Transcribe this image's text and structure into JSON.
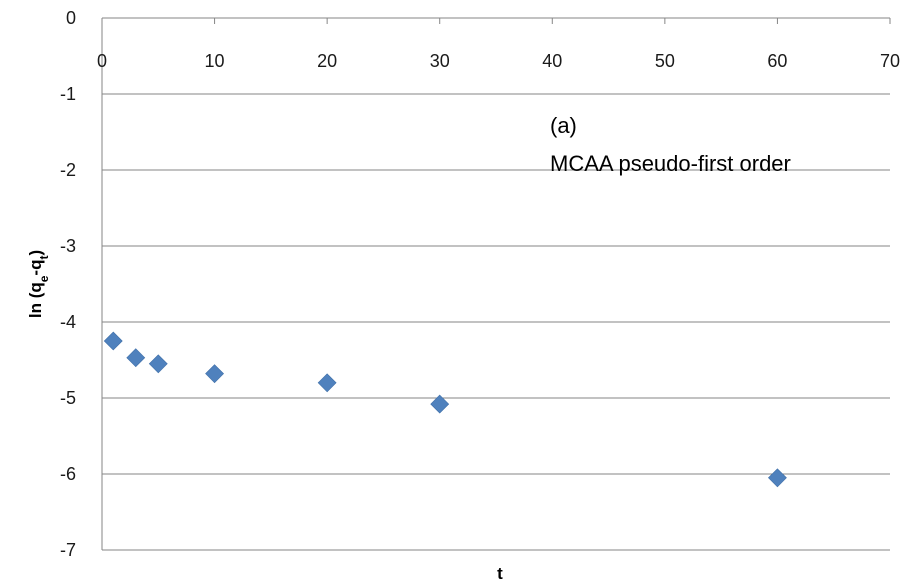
{
  "chart_data": {
    "type": "scatter",
    "title": "",
    "xlabel": "t",
    "ylabel": {
      "prefix": "ln (q",
      "sub1": "e",
      "mid": "-q",
      "sub2": "t",
      "suffix": ")"
    },
    "xlim": [
      0,
      70
    ],
    "ylim": [
      -7,
      0
    ],
    "xticks": [
      0,
      10,
      20,
      30,
      40,
      50,
      60,
      70
    ],
    "yticks": [
      0,
      -1,
      -2,
      -3,
      -4,
      -5,
      -6,
      -7
    ],
    "grid": true,
    "legend": "none",
    "marker_color": "#4F81BD",
    "gridline_color": "#868686",
    "series": [
      {
        "marker": "diamond",
        "x": [
          1,
          3,
          5,
          10,
          20,
          30,
          60
        ],
        "y": [
          -4.25,
          -4.47,
          -4.55,
          -4.68,
          -4.8,
          -5.08,
          -6.05
        ]
      }
    ],
    "annotations": [
      {
        "text": "(a)"
      },
      {
        "text": "MCAA pseudo-first order"
      }
    ]
  }
}
